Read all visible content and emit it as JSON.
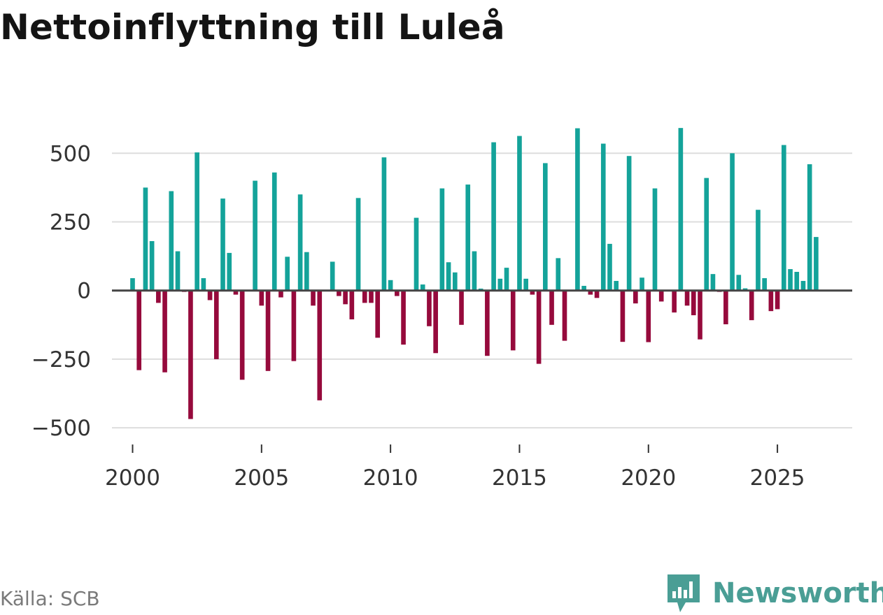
{
  "title": "Nettoinflyttning till Luleå",
  "source": "Källa: SCB",
  "brand": {
    "name": "Newsworthy",
    "icon": "newsworthy-logo-icon"
  },
  "colors": {
    "positive": "#14a39a",
    "negative": "#960a3c",
    "grid": "#dddddd",
    "zero": "#444444",
    "brand": "#4a9e95"
  },
  "chart_data": {
    "type": "bar",
    "title": "Nettoinflyttning till Luleå",
    "xlabel": "",
    "ylabel": "",
    "ylim": [
      -520,
      600
    ],
    "xlim": [
      1999.2,
      2027.9
    ],
    "grid": true,
    "legend": "none",
    "yticks": [
      {
        "value": 500,
        "label": "500"
      },
      {
        "value": 250,
        "label": "250"
      },
      {
        "value": 0,
        "label": "0"
      },
      {
        "value": -250,
        "label": "−250"
      },
      {
        "value": -500,
        "label": "−500"
      }
    ],
    "xticks": [
      {
        "value": 2000,
        "label": "2000"
      },
      {
        "value": 2005,
        "label": "2005"
      },
      {
        "value": 2010,
        "label": "2010"
      },
      {
        "value": 2015,
        "label": "2015"
      },
      {
        "value": 2020,
        "label": "2020"
      },
      {
        "value": 2025,
        "label": "2025"
      }
    ],
    "series": [
      {
        "name": "Nettoinflyttning",
        "start": 2000.0,
        "step": 0.25,
        "values": [
          45,
          -290,
          375,
          180,
          -45,
          -298,
          362,
          143,
          -5,
          -468,
          503,
          45,
          -35,
          -250,
          335,
          137,
          -15,
          -325,
          0,
          400,
          -55,
          -293,
          430,
          -25,
          123,
          -257,
          350,
          140,
          -55,
          -400,
          0,
          105,
          -20,
          -50,
          -105,
          337,
          -45,
          -45,
          -172,
          485,
          38,
          -20,
          -197,
          0,
          265,
          22,
          -130,
          -228,
          372,
          103,
          66,
          -125,
          386,
          143,
          7,
          -238,
          540,
          43,
          83,
          -218,
          563,
          43,
          -15,
          -267,
          464,
          -125,
          118,
          -183,
          0,
          591,
          17,
          -15,
          -27,
          535,
          170,
          35,
          -187,
          490,
          -47,
          47,
          -188,
          372,
          -40,
          0,
          -80,
          592,
          -55,
          -90,
          -178,
          410,
          60,
          -5,
          -123,
          500,
          57,
          8,
          -108,
          294,
          45,
          -75,
          -68,
          530,
          78,
          68,
          35,
          460,
          195
        ]
      }
    ]
  }
}
